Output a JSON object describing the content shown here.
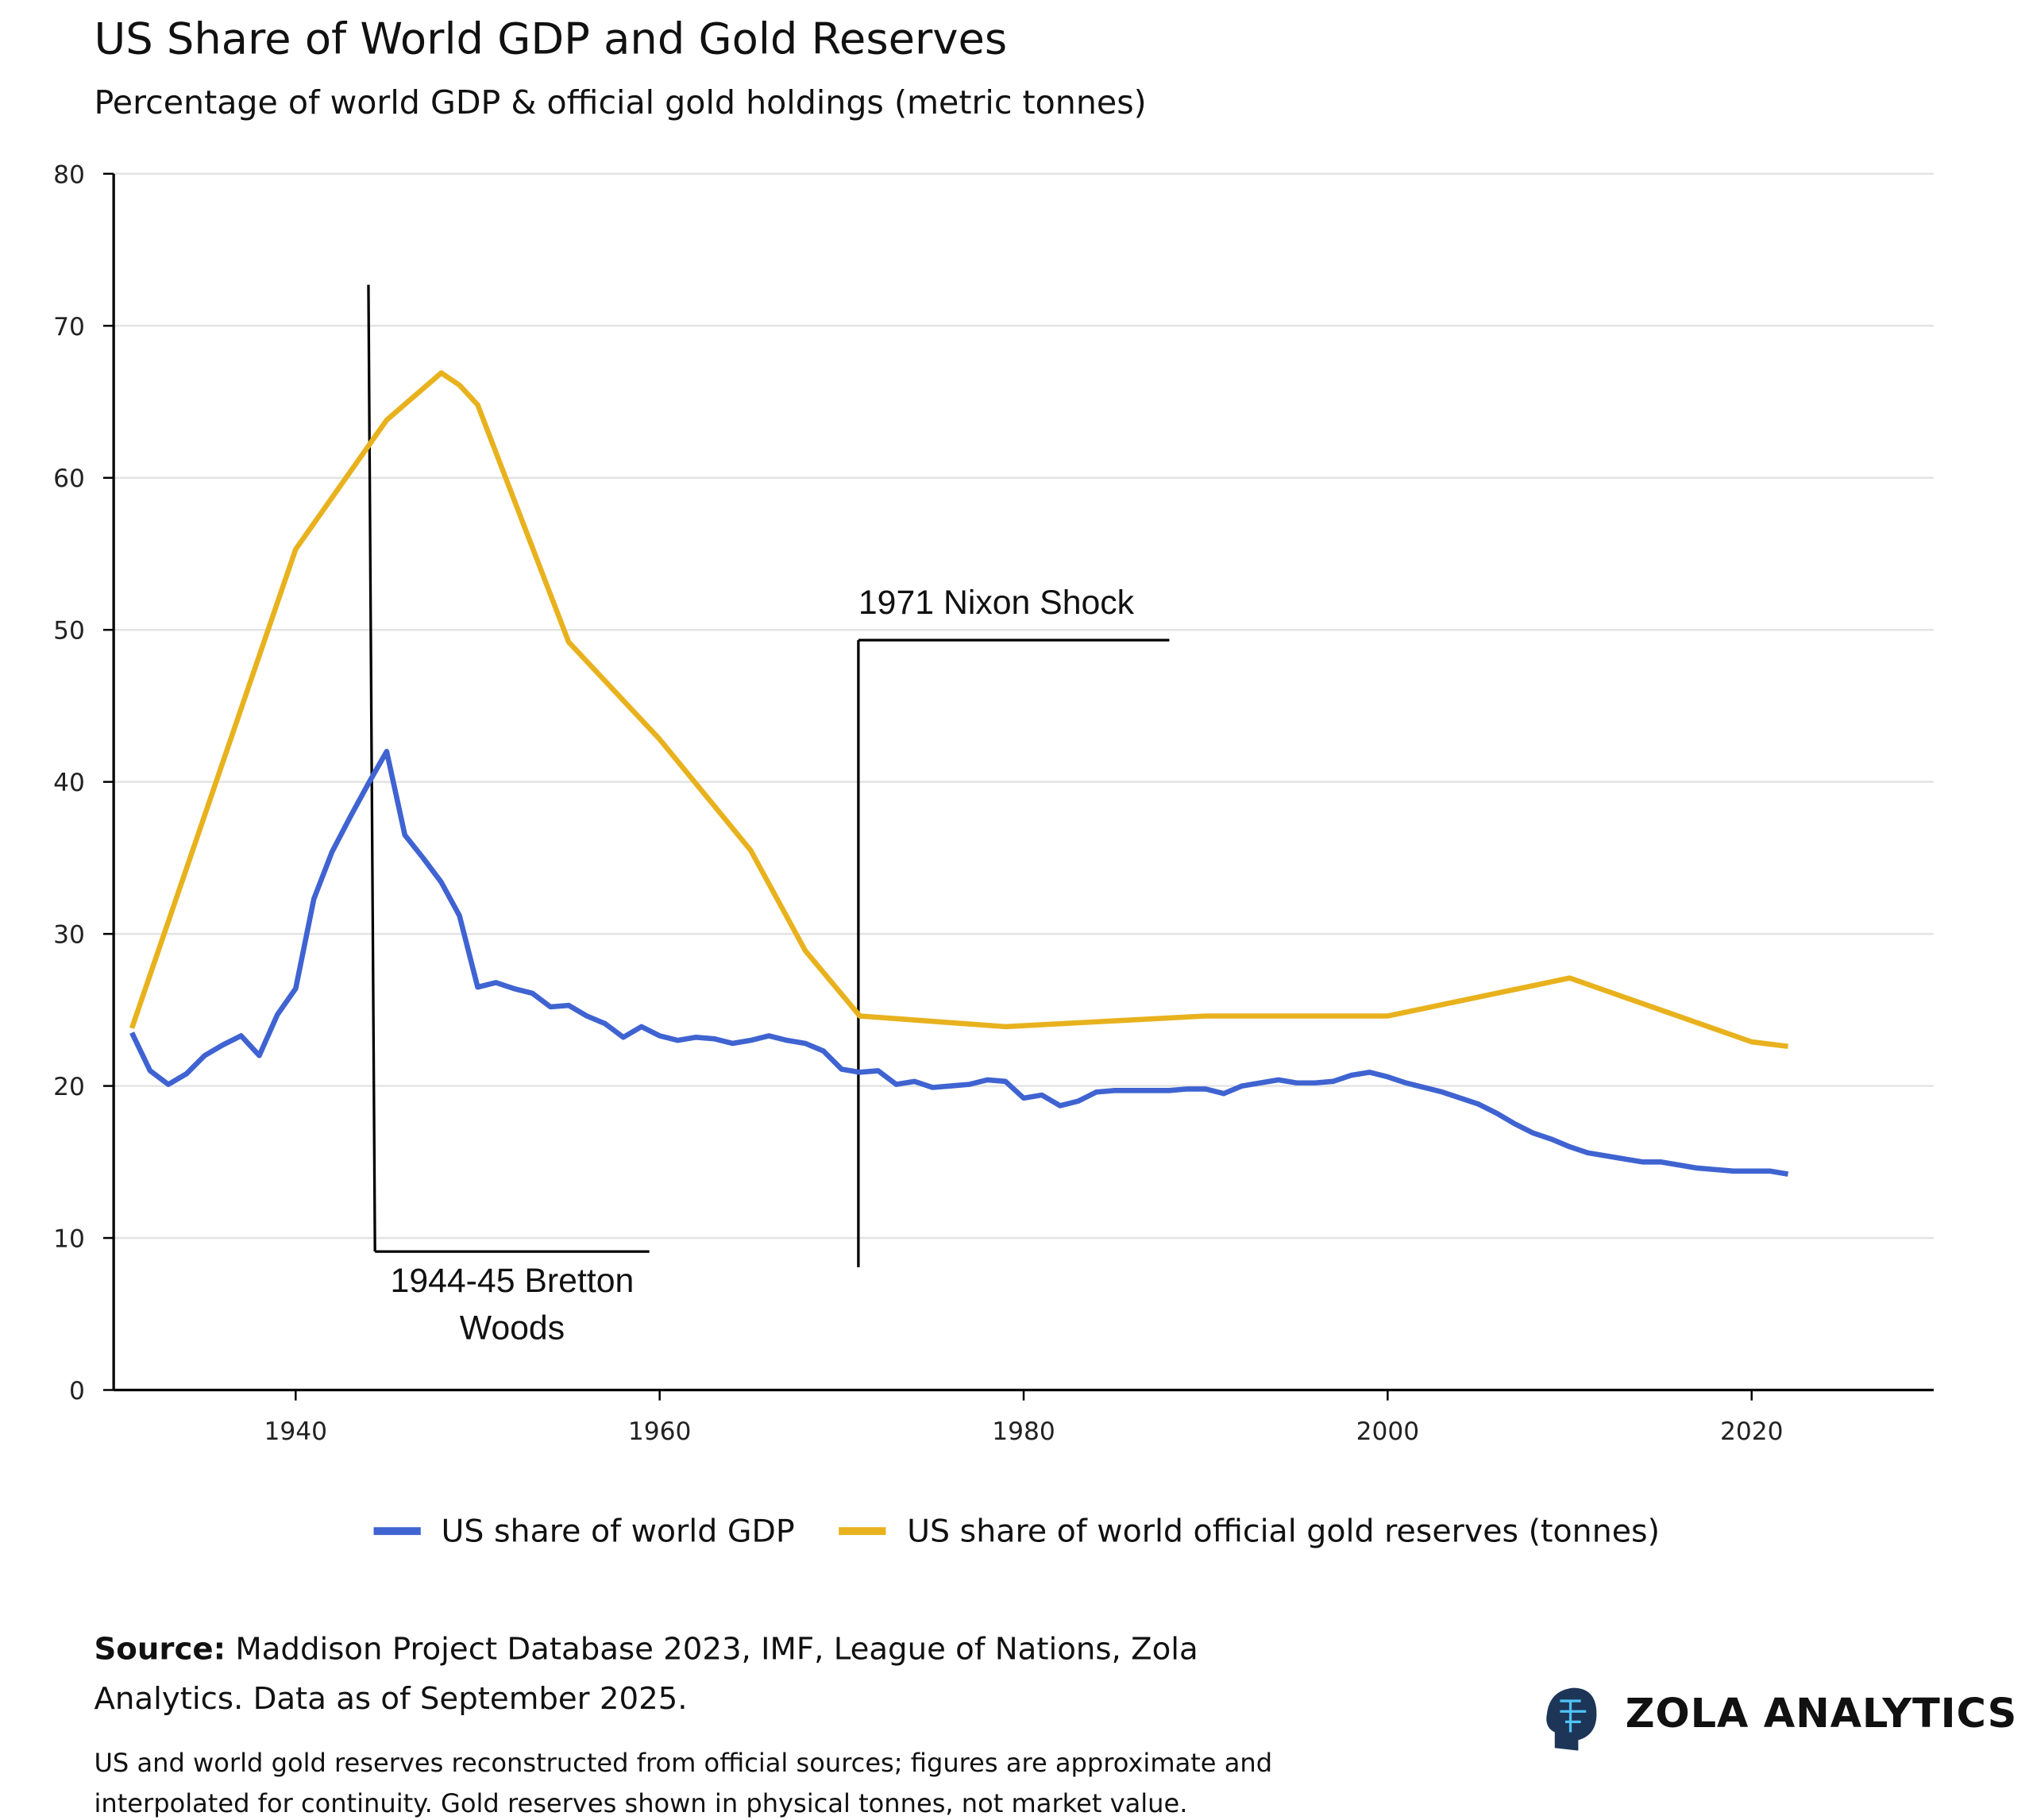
{
  "chart_data": {
    "type": "line",
    "title": "US Share of World GDP and Gold Reserves",
    "subtitle": "Percentage of world GDP & official gold holdings (metric tonnes)",
    "series": [
      {
        "name": "US share of world GDP",
        "color": "#3f63d1",
        "x": [
          1931,
          1932,
          1933,
          1934,
          1935,
          1936,
          1937,
          1938,
          1939,
          1940,
          1941,
          1942,
          1943,
          1944,
          1945,
          1946,
          1947,
          1948,
          1949,
          1950,
          1951,
          1952,
          1953,
          1954,
          1955,
          1956,
          1957,
          1958,
          1959,
          1960,
          1961,
          1962,
          1963,
          1964,
          1965,
          1966,
          1967,
          1968,
          1969,
          1970,
          1971,
          1972,
          1973,
          1974,
          1975,
          1976,
          1977,
          1978,
          1979,
          1980,
          1981,
          1982,
          1983,
          1984,
          1985,
          1986,
          1987,
          1988,
          1989,
          1990,
          1991,
          1992,
          1993,
          1994,
          1995,
          1996,
          1997,
          1998,
          1999,
          2000,
          2001,
          2002,
          2003,
          2004,
          2005,
          2006,
          2007,
          2008,
          2009,
          2010,
          2011,
          2012,
          2013,
          2014,
          2015,
          2016,
          2017,
          2018,
          2019,
          2020,
          2021,
          2022
        ],
        "values": [
          23.5,
          21,
          20.1,
          20.8,
          22,
          22.7,
          23.3,
          22,
          24.7,
          26.4,
          32.3,
          35.4,
          37.7,
          39.9,
          42,
          36.5,
          35,
          33.4,
          31.2,
          26.5,
          26.8,
          26.4,
          26.1,
          25.2,
          25.3,
          24.6,
          24.1,
          23.2,
          23.9,
          23.3,
          23,
          23.2,
          23.1,
          22.8,
          23,
          23.3,
          23,
          22.8,
          22.3,
          21.1,
          20.9,
          21,
          20.1,
          20.3,
          19.9,
          20,
          20.1,
          20.4,
          20.3,
          19.2,
          19.4,
          18.7,
          19,
          19.6,
          19.7,
          19.7,
          19.7,
          19.7,
          19.8,
          19.8,
          19.5,
          20,
          20.2,
          20.4,
          20.2,
          20.2,
          20.3,
          20.7,
          20.9,
          20.6,
          20.2,
          19.9,
          19.6,
          19.2,
          18.8,
          18.2,
          17.5,
          16.9,
          16.5,
          16,
          15.6,
          15.4,
          15.2,
          15,
          15,
          14.8,
          14.6,
          14.5,
          14.4,
          14.4,
          14.4,
          14.2
        ]
      },
      {
        "name": "US share of world official gold reserves (tonnes)",
        "color": "#e8b21e",
        "x": [
          1931,
          1940,
          1945,
          1948,
          1949,
          1950,
          1955,
          1960,
          1965,
          1968,
          1971,
          1979,
          1990,
          2000,
          2010,
          2020,
          2022
        ],
        "values": [
          23.8,
          55.3,
          63.8,
          66.9,
          66.1,
          64.8,
          49.2,
          42.8,
          35.5,
          28.9,
          24.6,
          23.9,
          24.6,
          24.6,
          27.1,
          22.9,
          22.6
        ]
      }
    ],
    "xlim": [
      1930,
      2030
    ],
    "xticks": [
      1940,
      1960,
      1980,
      2000,
      2020
    ],
    "ylim": [
      0,
      80
    ],
    "yticks": [
      0,
      10,
      20,
      30,
      40,
      50,
      60,
      70,
      80
    ],
    "grid": true,
    "legend": "bottom",
    "annotations": [
      {
        "text": "1944-45 Bretton Woods"
      },
      {
        "text": "1971 Nixon Shock"
      }
    ]
  },
  "footer": {
    "source_label": "Source:",
    "source_text": "Maddison Project Database 2023, IMF, League of Nations, Zola Analytics. Data as of September 2025.",
    "note": "US and world gold reserves reconstructed from official sources; figures are approximate and interpolated for continuity. Gold reserves shown in physical tonnes, not market value.",
    "brand": "ZOLA ANALYTICS"
  }
}
